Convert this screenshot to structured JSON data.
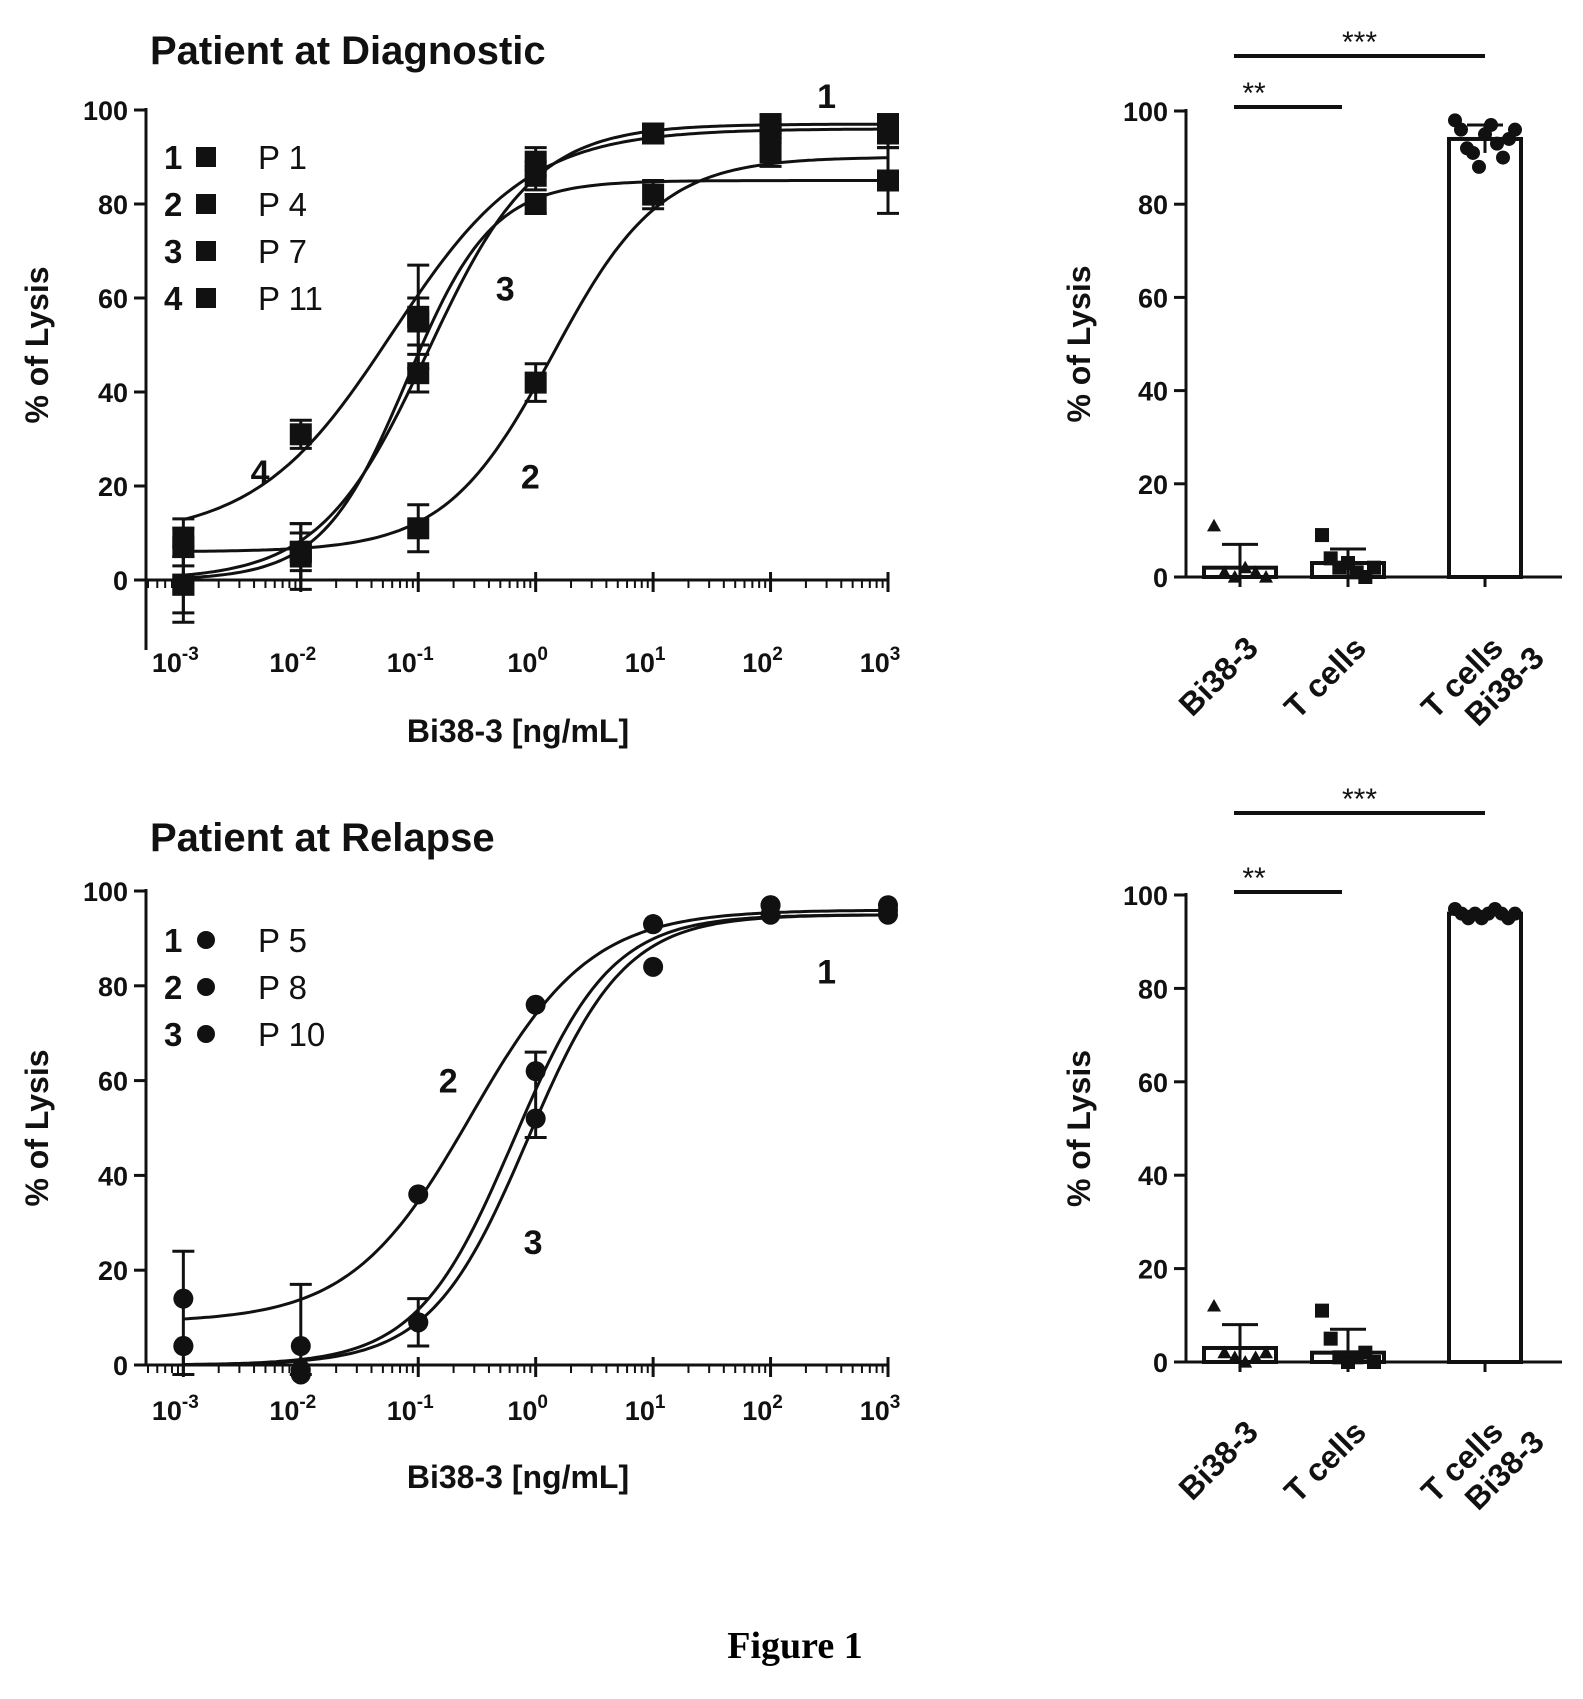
{
  "caption": "Figure 1",
  "chart_data": [
    {
      "type": "line",
      "subtype": "dose-response",
      "title": "Patient at Diagnostic",
      "xlabel": "Bi38-3 [ng/mL]",
      "ylabel": "% of Lysis",
      "xscale": "log",
      "xlim": [
        0.0005,
        1000
      ],
      "ylim": [
        -15,
        100
      ],
      "xtick_exponents": [
        "-3",
        "-2",
        "-1",
        "0",
        "1",
        "2",
        "3"
      ],
      "yticks": [
        0,
        20,
        40,
        60,
        80,
        100
      ],
      "marker": "square",
      "legend": "top-left",
      "series": [
        {
          "key": "1",
          "name": "P 1",
          "x": [
            0.001,
            0.01,
            0.1,
            1,
            10,
            100,
            1000
          ],
          "y": [
            -1,
            5,
            44,
            86,
            95,
            96,
            96
          ],
          "err": [
            8,
            7,
            4,
            3,
            2,
            2,
            3
          ],
          "fit": {
            "bottom": 0,
            "top": 97,
            "ec50": 0.12,
            "hill": 0.95
          }
        },
        {
          "key": "2",
          "name": "P 4",
          "x": [
            0.001,
            0.01,
            0.1,
            1,
            10,
            100,
            1000
          ],
          "y": [
            7,
            6,
            11,
            42,
            82,
            91,
            85
          ],
          "err": [
            4,
            4,
            5,
            4,
            3,
            3,
            7
          ],
          "fit": {
            "bottom": 6,
            "top": 90,
            "ec50": 1.4,
            "hill": 0.95
          }
        },
        {
          "key": "3",
          "name": "P 7",
          "x": [
            0.001,
            0.01,
            0.1,
            1,
            10,
            100,
            1000
          ],
          "y": [
            -1,
            6,
            56,
            80,
            95,
            95,
            95
          ],
          "err": [
            6,
            6,
            11,
            2,
            2,
            2,
            3
          ],
          "fit": {
            "bottom": 0,
            "top": 85,
            "ec50": 0.08,
            "hill": 1.2
          }
        },
        {
          "key": "4",
          "name": "P 11",
          "x": [
            0.001,
            0.01,
            0.1,
            1,
            10,
            100,
            1000
          ],
          "y": [
            9,
            31,
            55,
            89,
            95,
            97,
            97
          ],
          "err": [
            4,
            3,
            5,
            3,
            2,
            2,
            2
          ],
          "fit": {
            "bottom": 9,
            "top": 96,
            "ec50": 0.06,
            "hill": 0.75
          }
        }
      ],
      "annotations": [
        {
          "text": "1",
          "x": 300,
          "y": 103
        },
        {
          "text": "2",
          "x": 0.9,
          "y": 22
        },
        {
          "text": "3",
          "x": 0.55,
          "y": 62
        },
        {
          "text": "4",
          "x": 0.0045,
          "y": 23
        }
      ]
    },
    {
      "type": "bar",
      "ylabel": "% of Lysis",
      "ylim": [
        0,
        100
      ],
      "yticks": [
        0,
        20,
        40,
        60,
        80,
        100
      ],
      "categories": [
        "Bi38-3",
        "T cells",
        "T cells\nBi38-3"
      ],
      "values": [
        2,
        3,
        94
      ],
      "err": [
        5,
        3,
        3
      ],
      "points": [
        [
          11,
          1,
          0,
          2,
          1,
          0
        ],
        [
          9,
          4,
          2,
          3,
          1,
          0,
          2
        ],
        [
          98,
          96,
          92,
          91,
          88,
          95,
          97,
          93,
          90,
          94,
          96
        ]
      ],
      "point_markers": [
        "triangle",
        "square",
        "circle"
      ],
      "significance": [
        {
          "label": "**",
          "from": 0,
          "to": 1
        },
        {
          "label": "***",
          "from": 0,
          "to": 2
        }
      ]
    },
    {
      "type": "line",
      "subtype": "dose-response",
      "title": "Patient at Relapse",
      "xlabel": "Bi38-3 [ng/mL]",
      "ylabel": "% of Lysis",
      "xscale": "log",
      "xlim": [
        0.0005,
        1000
      ],
      "ylim": [
        0,
        100
      ],
      "xtick_exponents": [
        "-3",
        "-2",
        "-1",
        "0",
        "1",
        "2",
        "3"
      ],
      "yticks": [
        0,
        20,
        40,
        60,
        80,
        100
      ],
      "marker": "circle",
      "legend": "top-left",
      "series": [
        {
          "key": "1",
          "name": "P 5",
          "x": [
            0.001,
            0.01,
            0.1,
            1,
            10,
            100,
            1000
          ],
          "y": [
            4,
            -2,
            9,
            52,
            84,
            95,
            95
          ],
          "fit": {
            "bottom": 0,
            "top": 95,
            "ec50": 0.85,
            "hill": 1.05
          }
        },
        {
          "key": "2",
          "name": "P 8",
          "x": [
            0.001,
            0.01,
            0.1,
            1,
            10,
            100,
            1000
          ],
          "y": [
            14,
            4,
            36,
            76,
            93,
            97,
            97
          ],
          "fit": {
            "bottom": 9,
            "top": 96,
            "ec50": 0.28,
            "hill": 0.85
          }
        },
        {
          "key": "3",
          "name": "P 10",
          "x": [
            0.001,
            0.01,
            0.1,
            1,
            10,
            100,
            1000
          ],
          "y": [
            4,
            -1,
            9,
            62,
            93,
            97,
            96
          ],
          "fit": {
            "bottom": 0,
            "top": 95,
            "ec50": 0.65,
            "hill": 1.05
          }
        }
      ],
      "mean_errorbars": {
        "x": [
          0.001,
          0.01,
          0.1,
          1
        ],
        "y": [
          9,
          3,
          9,
          57
        ],
        "err": [
          15,
          14,
          5,
          9
        ]
      },
      "annotations": [
        {
          "text": "1",
          "x": 300,
          "y": 83
        },
        {
          "text": "2",
          "x": 0.18,
          "y": 60
        },
        {
          "text": "3",
          "x": 0.95,
          "y": 26
        }
      ]
    },
    {
      "type": "bar",
      "ylabel": "% of Lysis",
      "ylim": [
        0,
        100
      ],
      "yticks": [
        0,
        20,
        40,
        60,
        80,
        100
      ],
      "categories": [
        "Bi38-3",
        "T cells",
        "T cells\nBi38-3"
      ],
      "values": [
        3,
        2,
        96
      ],
      "err": [
        5,
        5,
        0.5
      ],
      "points": [
        [
          12,
          2,
          1,
          0,
          1,
          2
        ],
        [
          11,
          5,
          1,
          0,
          1,
          2,
          0
        ],
        [
          97,
          96,
          95,
          96,
          95,
          96,
          97,
          96,
          95,
          96
        ]
      ],
      "point_markers": [
        "triangle",
        "square",
        "circle"
      ],
      "significance": [
        {
          "label": "**",
          "from": 0,
          "to": 1
        },
        {
          "label": "***",
          "from": 0,
          "to": 2
        }
      ]
    }
  ]
}
